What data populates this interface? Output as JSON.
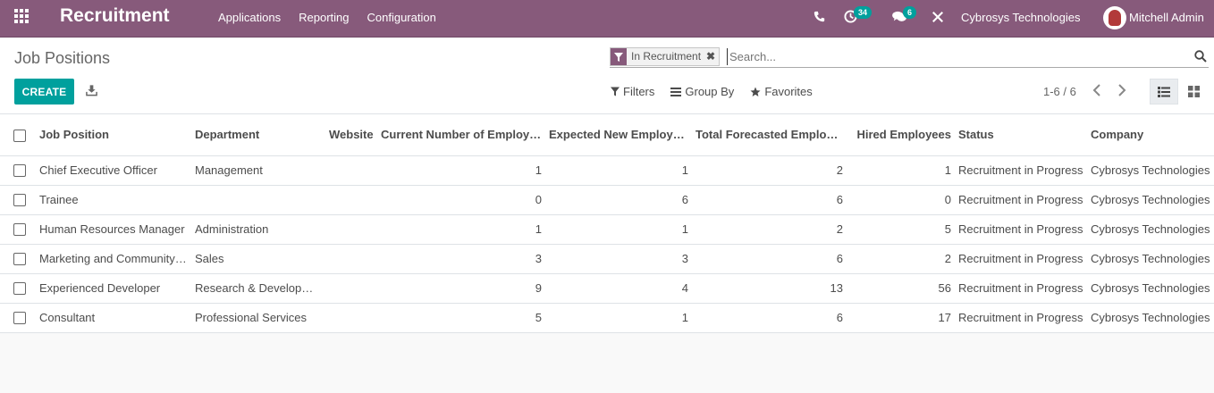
{
  "navbar": {
    "app_name": "Recruitment",
    "menu": [
      "Applications",
      "Reporting",
      "Configuration"
    ],
    "activity_count": "34",
    "messages_count": "6",
    "company": "Cybrosys Technologies",
    "user": "Mitchell Admin",
    "accent_color": "#875a7b"
  },
  "control": {
    "title": "Job Positions",
    "create_label": "CREATE",
    "facet_label": "In Recruitment",
    "search_placeholder": "Search...",
    "filters_label": "Filters",
    "groupby_label": "Group By",
    "favorites_label": "Favorites",
    "pager": "1-6 / 6",
    "button_color": "#00a09d"
  },
  "table": {
    "columns": [
      "Job Position",
      "Department",
      "Website",
      "Current Number of Employees",
      "Expected New Employees",
      "Total Forecasted Employees",
      "Hired Employees",
      "Status",
      "Company"
    ],
    "rows": [
      [
        "Chief Executive Officer",
        "Management",
        "",
        "1",
        "1",
        "2",
        "1",
        "Recruitment in Progress",
        "Cybrosys Technologies"
      ],
      [
        "Trainee",
        "",
        "",
        "0",
        "6",
        "6",
        "0",
        "Recruitment in Progress",
        "Cybrosys Technologies"
      ],
      [
        "Human Resources Manager",
        "Administration",
        "",
        "1",
        "1",
        "2",
        "5",
        "Recruitment in Progress",
        "Cybrosys Technologies"
      ],
      [
        "Marketing and Community Manager",
        "Sales",
        "",
        "3",
        "3",
        "6",
        "2",
        "Recruitment in Progress",
        "Cybrosys Technologies"
      ],
      [
        "Experienced Developer",
        "Research & Development",
        "",
        "9",
        "4",
        "13",
        "56",
        "Recruitment in Progress",
        "Cybrosys Technologies"
      ],
      [
        "Consultant",
        "Professional Services",
        "",
        "5",
        "1",
        "6",
        "17",
        "Recruitment in Progress",
        "Cybrosys Technologies"
      ]
    ]
  }
}
